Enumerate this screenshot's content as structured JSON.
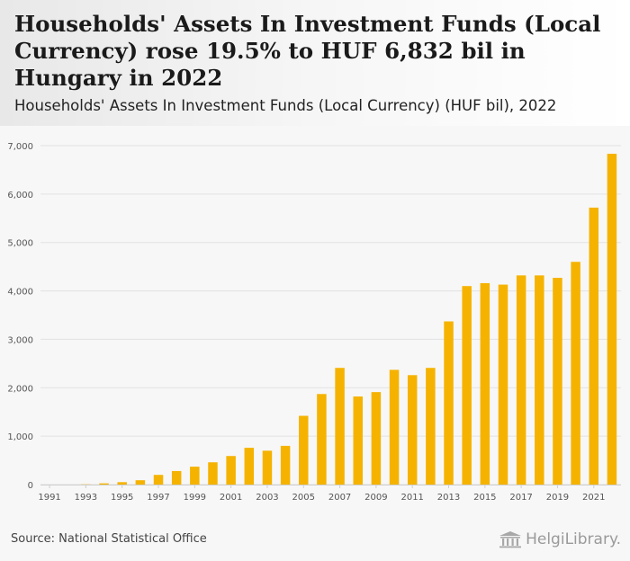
{
  "title": "Households' Assets In Investment Funds (Local Currency) rose 19.5% to HUF 6,832 bil in Hungary in 2022",
  "subtitle": "Households' Assets In Investment Funds (Local Currency) (HUF bil), 2022",
  "source": "Source: National Statistical Office",
  "brand": "HelgiLibrary.",
  "colors": {
    "bar": "#F5B300",
    "grid": "#e2e2e2",
    "axis_text": "#555555"
  },
  "chart_data": {
    "type": "bar",
    "title": "Households' Assets In Investment Funds (Local Currency) (HUF bil), 2022",
    "xlabel": "",
    "ylabel": "HUF bil",
    "ylim": [
      0,
      7000
    ],
    "yticks": [
      0,
      1000,
      2000,
      3000,
      4000,
      5000,
      6000,
      7000
    ],
    "ytick_labels": [
      "0",
      "1,000",
      "2,000",
      "3,000",
      "4,000",
      "5,000",
      "6,000",
      "7,000"
    ],
    "xtick_labels": [
      "1991",
      "1993",
      "1995",
      "1997",
      "1999",
      "2001",
      "2003",
      "2005",
      "2007",
      "2009",
      "2011",
      "2013",
      "2015",
      "2017",
      "2019",
      "2021"
    ],
    "grid": true,
    "categories": [
      "1991",
      "1992",
      "1993",
      "1994",
      "1995",
      "1996",
      "1997",
      "1998",
      "1999",
      "2000",
      "2001",
      "2002",
      "2003",
      "2004",
      "2005",
      "2006",
      "2007",
      "2008",
      "2009",
      "2010",
      "2011",
      "2012",
      "2013",
      "2014",
      "2015",
      "2016",
      "2017",
      "2018",
      "2019",
      "2020",
      "2021",
      "2022"
    ],
    "values": [
      0,
      0,
      5,
      25,
      50,
      90,
      200,
      280,
      370,
      460,
      590,
      760,
      700,
      800,
      1420,
      1870,
      2410,
      1820,
      1910,
      2370,
      2260,
      2410,
      3370,
      4100,
      4160,
      4130,
      4320,
      4320,
      4270,
      4600,
      5720,
      6832
    ]
  }
}
